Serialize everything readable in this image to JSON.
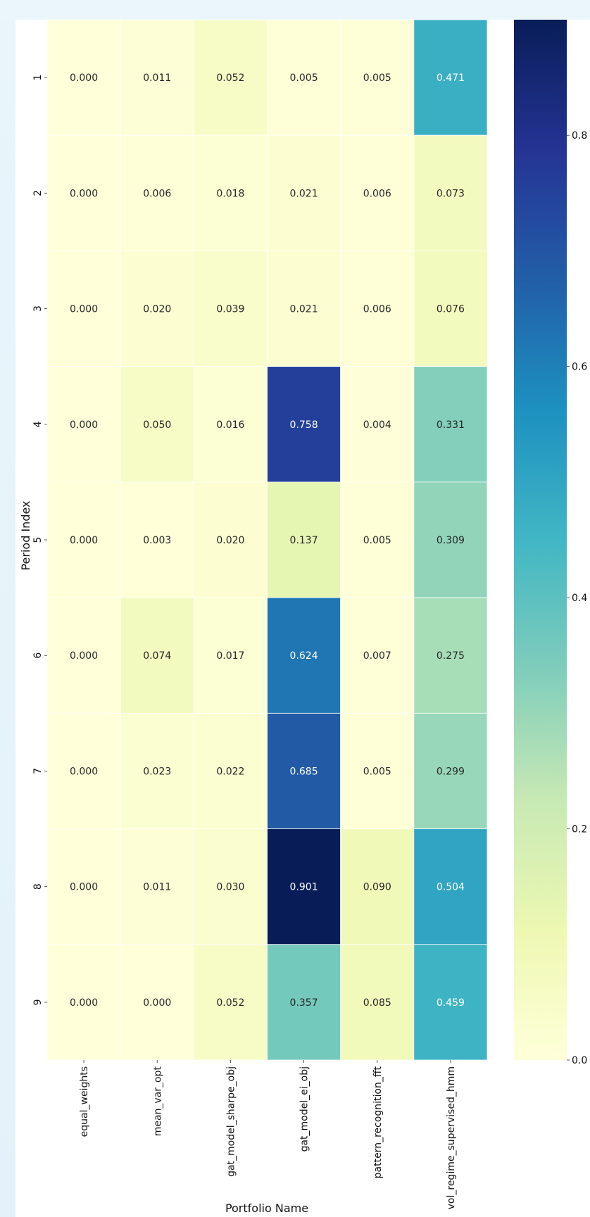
{
  "chart_data": {
    "type": "heatmap",
    "title": "",
    "xlabel": "Portfolio Name",
    "ylabel": "Period Index",
    "x_categories": [
      "equal_weights",
      "mean_var_opt",
      "gat_model_sharpe_obj",
      "gat_model_ei_obj",
      "pattern_recognition_fft",
      "vol_regime_supervised_hmm"
    ],
    "y_categories": [
      "1",
      "2",
      "3",
      "4",
      "5",
      "6",
      "7",
      "8",
      "9"
    ],
    "values": [
      [
        0.0,
        0.011,
        0.052,
        0.005,
        0.005,
        0.471
      ],
      [
        0.0,
        0.006,
        0.018,
        0.021,
        0.006,
        0.073
      ],
      [
        0.0,
        0.02,
        0.039,
        0.021,
        0.006,
        0.076
      ],
      [
        0.0,
        0.05,
        0.016,
        0.758,
        0.004,
        0.331
      ],
      [
        0.0,
        0.003,
        0.02,
        0.137,
        0.005,
        0.309
      ],
      [
        0.0,
        0.074,
        0.017,
        0.624,
        0.007,
        0.275
      ],
      [
        0.0,
        0.023,
        0.022,
        0.685,
        0.005,
        0.299
      ],
      [
        0.0,
        0.011,
        0.03,
        0.901,
        0.09,
        0.504
      ],
      [
        0.0,
        0.0,
        0.052,
        0.357,
        0.085,
        0.459
      ]
    ],
    "colorscale": "YlGnBu",
    "colorbar_range": [
      0.0,
      0.9
    ],
    "colorbar_ticks": [
      "0.0",
      "0.2",
      "0.4",
      "0.6",
      "0.8"
    ],
    "colorbar_tick_values": [
      0.0,
      0.2,
      0.4,
      0.6,
      0.8
    ]
  }
}
